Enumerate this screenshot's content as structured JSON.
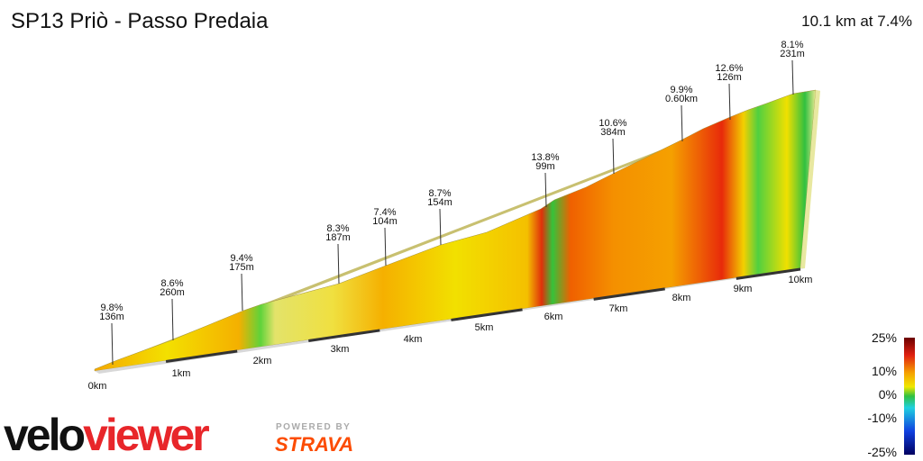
{
  "header": {
    "title": "SP13 Priò - Passo Predaia",
    "summary": "10.1 km at 7.4%"
  },
  "annotations": [
    {
      "grade": "9.8%",
      "length": "136m"
    },
    {
      "grade": "8.6%",
      "length": "260m"
    },
    {
      "grade": "9.4%",
      "length": "175m"
    },
    {
      "grade": "8.3%",
      "length": "187m"
    },
    {
      "grade": "7.4%",
      "length": "104m"
    },
    {
      "grade": "8.7%",
      "length": "154m"
    },
    {
      "grade": "13.8%",
      "length": "99m"
    },
    {
      "grade": "10.6%",
      "length": "384m"
    },
    {
      "grade": "9.9%",
      "length": "0.60km"
    },
    {
      "grade": "12.6%",
      "length": "126m"
    },
    {
      "grade": "8.1%",
      "length": "231m"
    }
  ],
  "distance_ticks": [
    "0km",
    "1km",
    "2km",
    "3km",
    "4km",
    "5km",
    "6km",
    "7km",
    "8km",
    "9km",
    "10km"
  ],
  "legend": {
    "ticks": [
      "25%",
      "10%",
      "0%",
      "-10%",
      "-25%"
    ]
  },
  "logos": {
    "brand_a": "velo",
    "brand_b": "viewer",
    "powered_by": "POWERED BY",
    "partner": "STRAVA"
  }
}
